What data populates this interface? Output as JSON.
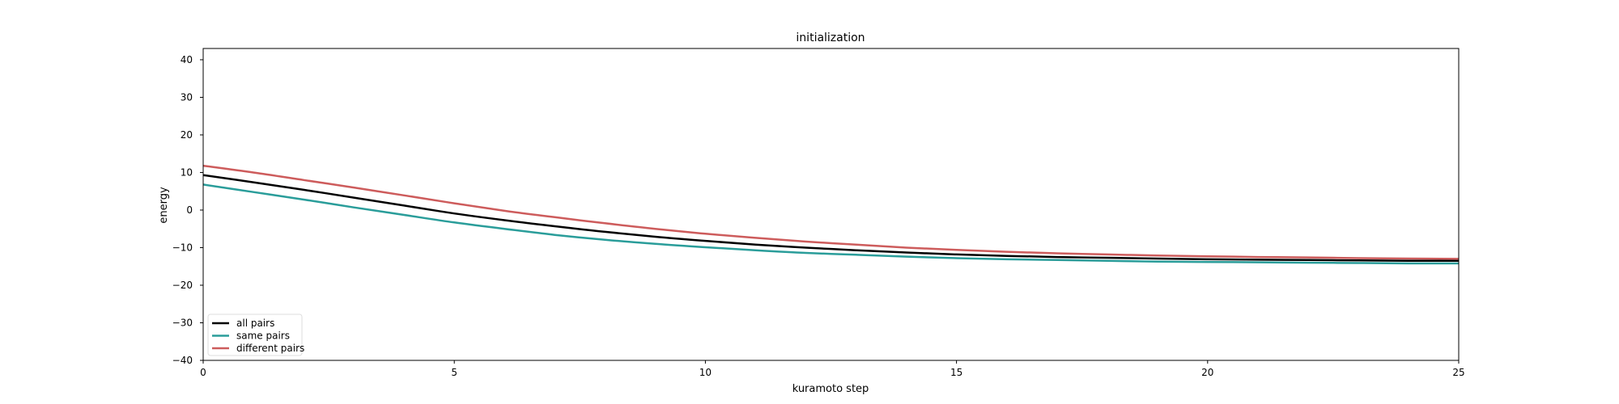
{
  "chart_data": {
    "type": "line",
    "title": "initialization",
    "xlabel": "kuramoto step",
    "ylabel": "energy",
    "xlim": [
      0,
      25
    ],
    "ylim": [
      -40,
      43
    ],
    "xticks": [
      0,
      5,
      10,
      15,
      20,
      25
    ],
    "yticks": [
      -40,
      -30,
      -20,
      -10,
      0,
      10,
      20,
      30,
      40
    ],
    "ytick_labels": [
      "−40",
      "−30",
      "−20",
      "−10",
      "0",
      "10",
      "20",
      "30",
      "40"
    ],
    "grid": false,
    "legend_position": "lower-left",
    "x": [
      0,
      1,
      2,
      3,
      4,
      5,
      6,
      7,
      8,
      9,
      10,
      11,
      12,
      13,
      14,
      15,
      16,
      17,
      18,
      19,
      20,
      21,
      22,
      23,
      24,
      25
    ],
    "series": [
      {
        "name": "all pairs",
        "color": "#000000",
        "values": [
          9.3,
          7.4,
          5.4,
          3.3,
          1.2,
          -0.9,
          -2.7,
          -4.3,
          -5.8,
          -7.1,
          -8.2,
          -9.2,
          -10.0,
          -10.7,
          -11.3,
          -11.8,
          -12.2,
          -12.5,
          -12.7,
          -12.9,
          -13.1,
          -13.2,
          -13.3,
          -13.4,
          -13.5,
          -13.5
        ]
      },
      {
        "name": "same pairs",
        "color": "#2a9d9a",
        "values": [
          6.8,
          4.8,
          2.8,
          0.7,
          -1.3,
          -3.3,
          -5.0,
          -6.6,
          -7.9,
          -9.0,
          -9.9,
          -10.7,
          -11.4,
          -11.9,
          -12.4,
          -12.8,
          -13.1,
          -13.3,
          -13.5,
          -13.7,
          -13.8,
          -13.9,
          -14.0,
          -14.1,
          -14.2,
          -14.2
        ]
      },
      {
        "name": "different pairs",
        "color": "#cd5c5c",
        "values": [
          11.8,
          10.0,
          8.0,
          6.0,
          3.9,
          1.8,
          -0.2,
          -1.9,
          -3.5,
          -5.0,
          -6.3,
          -7.4,
          -8.4,
          -9.2,
          -10.0,
          -10.6,
          -11.1,
          -11.5,
          -11.8,
          -12.1,
          -12.3,
          -12.5,
          -12.6,
          -12.8,
          -12.9,
          -13.0
        ]
      }
    ]
  }
}
